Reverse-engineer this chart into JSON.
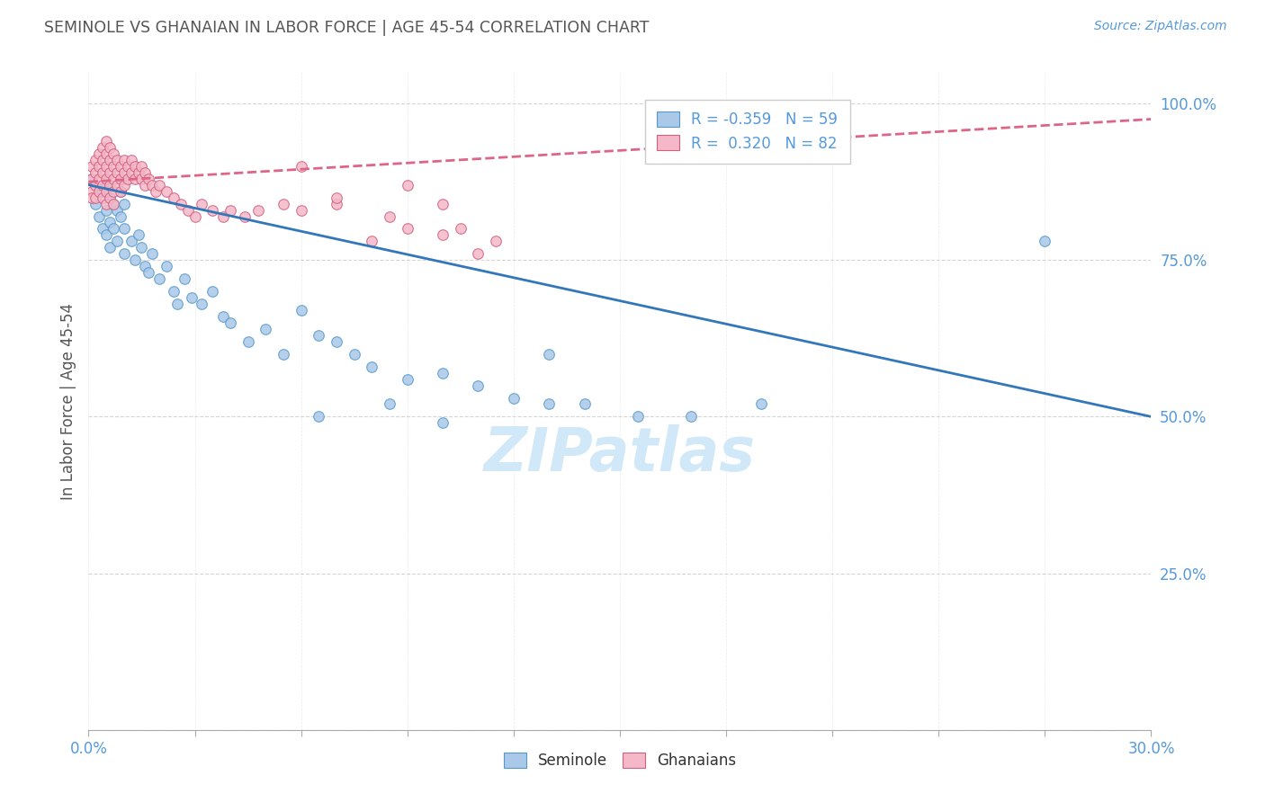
{
  "title": "SEMINOLE VS GHANAIAN IN LABOR FORCE | AGE 45-54 CORRELATION CHART",
  "source": "Source: ZipAtlas.com",
  "ylabel": "In Labor Force | Age 45-54",
  "xlim": [
    0.0,
    0.3
  ],
  "ylim": [
    0.0,
    1.05
  ],
  "blue_R": "-0.359",
  "blue_N": "59",
  "pink_R": "0.320",
  "pink_N": "82",
  "blue_scatter_color": "#aac8e8",
  "blue_edge_color": "#5599cc",
  "pink_scatter_color": "#f4b8c8",
  "pink_edge_color": "#d06080",
  "blue_line_color": "#3377bb",
  "pink_line_color": "#dd6688",
  "axis_color": "#5599dd",
  "title_color": "#555555",
  "watermark_color": "#d0e8f8",
  "blue_line_x": [
    0.0,
    0.3
  ],
  "blue_line_y": [
    0.87,
    0.5
  ],
  "pink_line_x": [
    0.0,
    0.3
  ],
  "pink_line_y": [
    0.875,
    0.975
  ],
  "seminole_x": [
    0.001,
    0.002,
    0.003,
    0.004,
    0.004,
    0.005,
    0.005,
    0.005,
    0.006,
    0.006,
    0.006,
    0.007,
    0.007,
    0.008,
    0.008,
    0.009,
    0.009,
    0.01,
    0.01,
    0.01,
    0.012,
    0.013,
    0.014,
    0.015,
    0.016,
    0.017,
    0.018,
    0.02,
    0.022,
    0.024,
    0.025,
    0.027,
    0.029,
    0.032,
    0.035,
    0.038,
    0.04,
    0.045,
    0.05,
    0.055,
    0.06,
    0.065,
    0.07,
    0.075,
    0.08,
    0.09,
    0.1,
    0.11,
    0.12,
    0.13,
    0.065,
    0.085,
    0.1,
    0.13,
    0.14,
    0.155,
    0.17,
    0.19,
    0.27
  ],
  "seminole_y": [
    0.88,
    0.84,
    0.82,
    0.86,
    0.8,
    0.87,
    0.83,
    0.79,
    0.85,
    0.81,
    0.77,
    0.84,
    0.8,
    0.83,
    0.78,
    0.86,
    0.82,
    0.84,
    0.8,
    0.76,
    0.78,
    0.75,
    0.79,
    0.77,
    0.74,
    0.73,
    0.76,
    0.72,
    0.74,
    0.7,
    0.68,
    0.72,
    0.69,
    0.68,
    0.7,
    0.66,
    0.65,
    0.62,
    0.64,
    0.6,
    0.67,
    0.63,
    0.62,
    0.6,
    0.58,
    0.56,
    0.57,
    0.55,
    0.53,
    0.52,
    0.5,
    0.52,
    0.49,
    0.6,
    0.52,
    0.5,
    0.5,
    0.52,
    0.78
  ],
  "ghanaian_x": [
    0.001,
    0.001,
    0.001,
    0.001,
    0.002,
    0.002,
    0.002,
    0.002,
    0.003,
    0.003,
    0.003,
    0.003,
    0.004,
    0.004,
    0.004,
    0.004,
    0.004,
    0.005,
    0.005,
    0.005,
    0.005,
    0.005,
    0.005,
    0.006,
    0.006,
    0.006,
    0.006,
    0.006,
    0.007,
    0.007,
    0.007,
    0.007,
    0.007,
    0.008,
    0.008,
    0.008,
    0.009,
    0.009,
    0.009,
    0.01,
    0.01,
    0.01,
    0.011,
    0.011,
    0.012,
    0.012,
    0.013,
    0.013,
    0.014,
    0.015,
    0.015,
    0.016,
    0.016,
    0.017,
    0.018,
    0.019,
    0.02,
    0.022,
    0.024,
    0.026,
    0.028,
    0.03,
    0.032,
    0.035,
    0.038,
    0.04,
    0.044,
    0.048,
    0.055,
    0.06,
    0.07,
    0.08,
    0.09,
    0.1,
    0.115,
    0.06,
    0.07,
    0.085,
    0.09,
    0.1,
    0.105,
    0.11
  ],
  "ghanaian_y": [
    0.9,
    0.88,
    0.86,
    0.85,
    0.91,
    0.89,
    0.87,
    0.85,
    0.92,
    0.9,
    0.88,
    0.86,
    0.93,
    0.91,
    0.89,
    0.87,
    0.85,
    0.94,
    0.92,
    0.9,
    0.88,
    0.86,
    0.84,
    0.93,
    0.91,
    0.89,
    0.87,
    0.85,
    0.92,
    0.9,
    0.88,
    0.86,
    0.84,
    0.91,
    0.89,
    0.87,
    0.9,
    0.88,
    0.86,
    0.91,
    0.89,
    0.87,
    0.9,
    0.88,
    0.91,
    0.89,
    0.9,
    0.88,
    0.89,
    0.9,
    0.88,
    0.89,
    0.87,
    0.88,
    0.87,
    0.86,
    0.87,
    0.86,
    0.85,
    0.84,
    0.83,
    0.82,
    0.84,
    0.83,
    0.82,
    0.83,
    0.82,
    0.83,
    0.84,
    0.83,
    0.84,
    0.78,
    0.8,
    0.79,
    0.78,
    0.9,
    0.85,
    0.82,
    0.87,
    0.84,
    0.8,
    0.76
  ]
}
